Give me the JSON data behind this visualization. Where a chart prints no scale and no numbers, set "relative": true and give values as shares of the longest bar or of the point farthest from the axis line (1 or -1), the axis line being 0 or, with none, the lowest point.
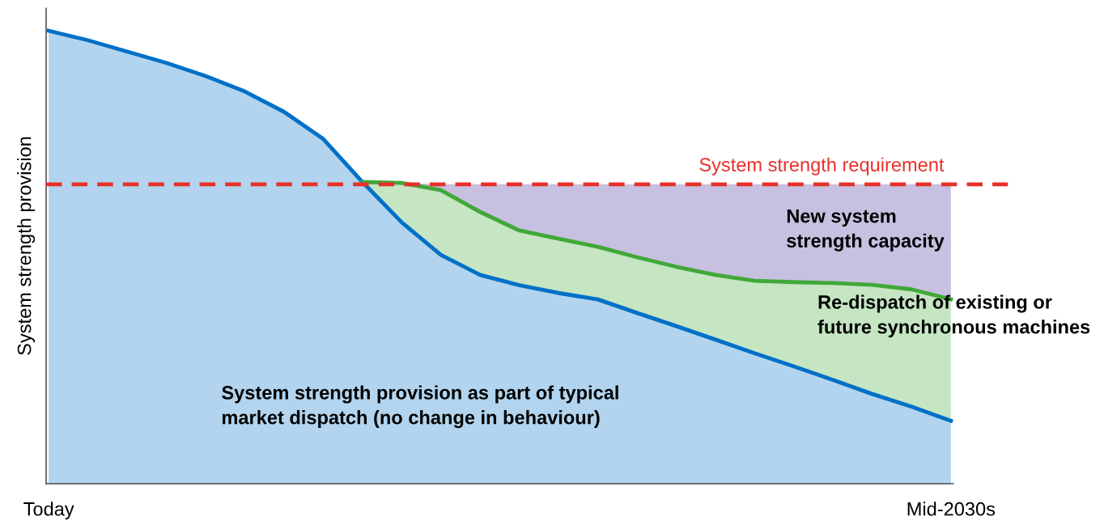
{
  "chart_data": {
    "type": "area",
    "relative": true,
    "stacked": true,
    "ylabel": "System strength provision",
    "categories": [
      "Today",
      null,
      null,
      null,
      null,
      null,
      null,
      null,
      null,
      null,
      null,
      null,
      null,
      null,
      null,
      null,
      null,
      null,
      null,
      null,
      null,
      null,
      null,
      "Mid-2030s"
    ],
    "series": [
      {
        "name": "System strength provision as part of typical\nmarket dispatch (no change in behaviour)",
        "color": "#0070c8",
        "line_style": "solid",
        "values": [
          1.0,
          0.979,
          0.954,
          0.929,
          0.9,
          0.866,
          0.821,
          0.761,
          0.666,
          0.577,
          0.505,
          0.461,
          0.438,
          0.421,
          0.407,
          0.377,
          0.348,
          0.318,
          0.288,
          0.259,
          0.229,
          0.198,
          0.17,
          0.139
        ]
      },
      {
        "name": "Re-dispatch of existing or\nfuture synchronous machines",
        "color": "#40a838",
        "line_style": "solid",
        "values": [
          null,
          null,
          null,
          null,
          null,
          null,
          null,
          null,
          0.0,
          0.087,
          0.143,
          0.139,
          0.121,
          0.12,
          0.116,
          0.123,
          0.131,
          0.143,
          0.16,
          0.186,
          0.214,
          0.241,
          0.259,
          0.268
        ]
      },
      {
        "name": "New system\nstrength capacity",
        "color": "#c8c0e0",
        "values": [
          null,
          null,
          null,
          null,
          null,
          null,
          null,
          null,
          0.0,
          0.0,
          0.013,
          0.061,
          0.102,
          0.12,
          0.138,
          0.161,
          0.182,
          0.2,
          0.213,
          0.216,
          0.218,
          0.222,
          0.232,
          0.254
        ]
      }
    ],
    "ref_lines": [
      {
        "axis": "y",
        "value": 0.661,
        "label": "System strength requirement",
        "color": "#e8302a",
        "line_style": "dashed"
      }
    ],
    "legend": false,
    "grid": false
  }
}
